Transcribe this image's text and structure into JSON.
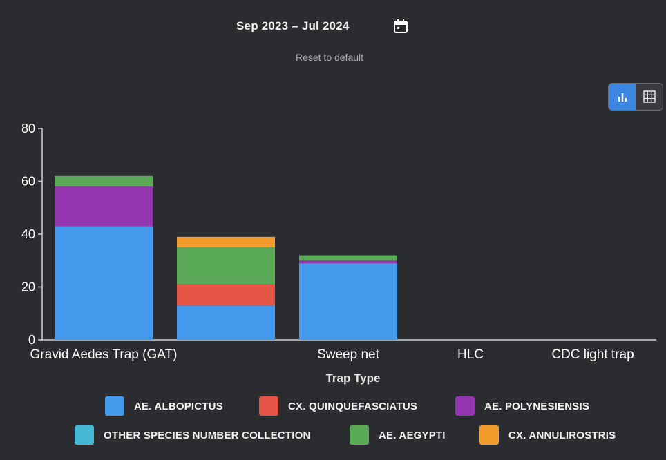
{
  "header": {
    "date_range": "Sep 2023 – Jul 2024",
    "reset_label": "Reset to default"
  },
  "icons": {
    "calendar": "calendar-icon",
    "bar_chart": "bar-chart-icon",
    "table": "table-grid-icon"
  },
  "colors": {
    "background": "#2b2c30",
    "accent": "#3a86e0"
  },
  "chart_data": {
    "type": "bar",
    "stacked": true,
    "title": "",
    "xlabel": "Trap Type",
    "ylabel": "",
    "ylim": [
      0,
      80
    ],
    "yticks": [
      0,
      20,
      40,
      60,
      80
    ],
    "categories": [
      "Gravid Aedes Trap (GAT)",
      "",
      "Sweep net",
      "HLC",
      "CDC light trap"
    ],
    "series": [
      {
        "name": "AE. ALBOPICTUS",
        "color": "#4399ec",
        "values": [
          43,
          13,
          29,
          0,
          0
        ]
      },
      {
        "name": "CX. QUINQUEFASCIATUS",
        "color": "#e55545",
        "values": [
          0,
          8,
          0,
          0,
          0
        ]
      },
      {
        "name": "AE. POLYNESIENSIS",
        "color": "#9435b0",
        "values": [
          15,
          0,
          1,
          0,
          0
        ]
      },
      {
        "name": "OTHER SPECIES NUMBER COLLECTION",
        "color": "#45b9d4",
        "values": [
          0,
          0,
          0,
          0,
          0
        ]
      },
      {
        "name": "AE. AEGYPTI",
        "color": "#5aa956",
        "values": [
          4,
          14,
          2,
          0,
          0
        ]
      },
      {
        "name": "CX. ANNULIROSTRIS",
        "color": "#f39c2e",
        "values": [
          0,
          4,
          0,
          0,
          0
        ]
      }
    ],
    "legend_position": "bottom"
  }
}
